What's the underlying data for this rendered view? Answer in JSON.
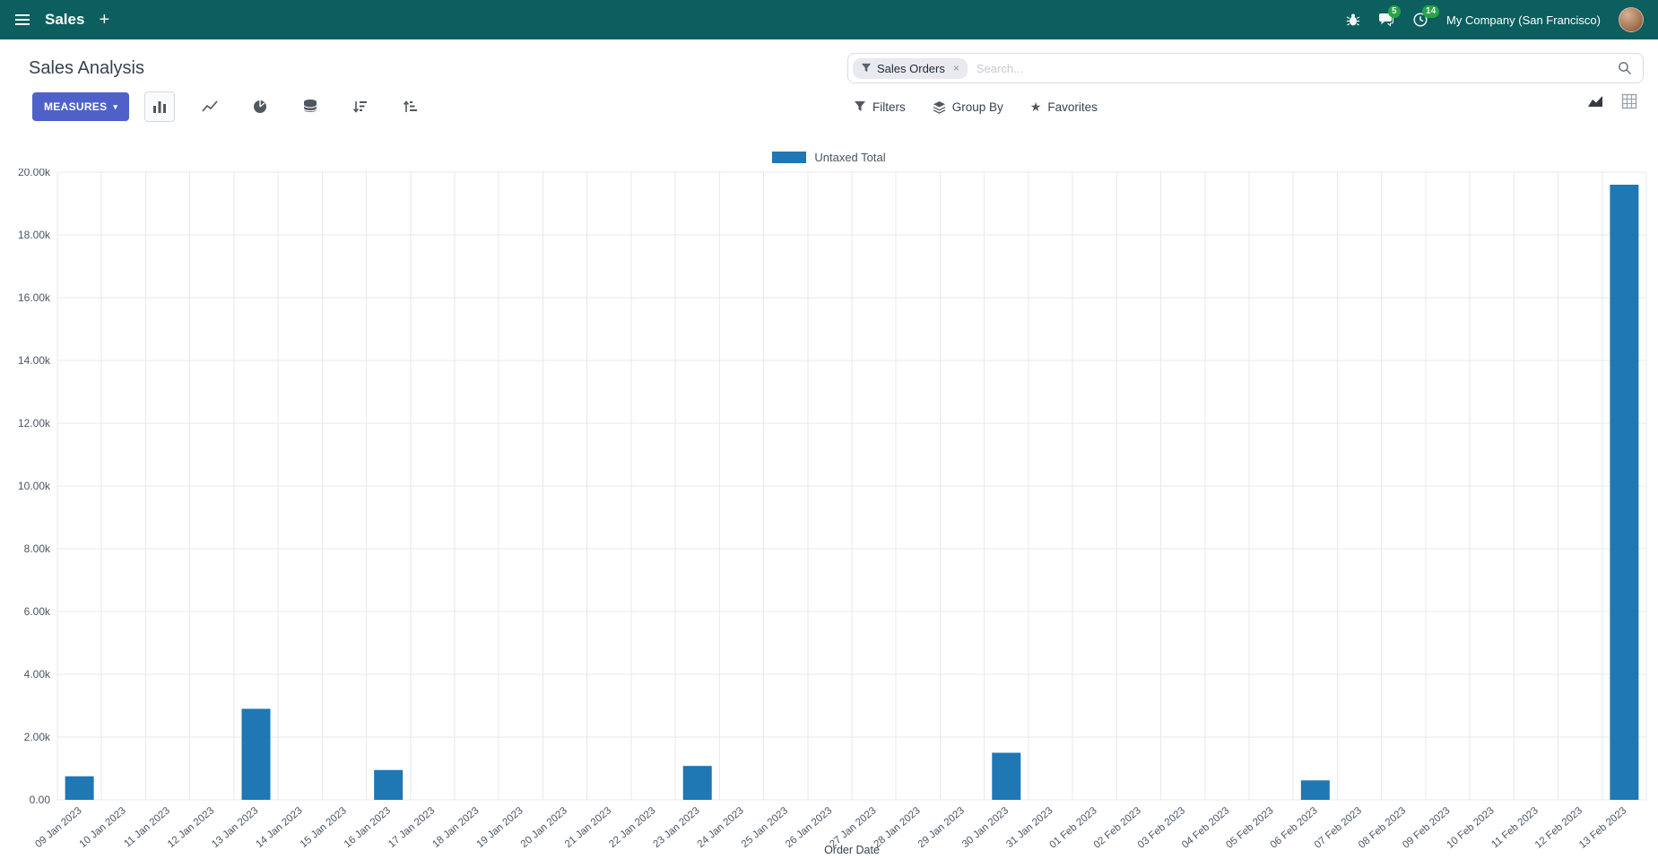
{
  "topbar": {
    "app_name": "Sales",
    "messages_count": "5",
    "activities_count": "14",
    "company": "My Company (San Francisco)"
  },
  "control_panel": {
    "breadcrumb": "Sales Analysis",
    "measures_label": "MEASURES",
    "search": {
      "facet": "Sales Orders",
      "placeholder": "Search..."
    },
    "filters_label": "Filters",
    "group_by_label": "Group By",
    "favorites_label": "Favorites"
  },
  "icons": {
    "plus": "+",
    "caret": "▾",
    "star": "★",
    "close": "×"
  },
  "colors": {
    "topbar_bg": "#0d5e5e",
    "primary": "#4f61c8",
    "badge_bg": "#28a745",
    "text_dark": "#374151",
    "icon": "#51575e",
    "border": "#d8dce1",
    "grid": "#e7e9eb"
  },
  "chart_data": {
    "type": "bar",
    "title": "",
    "legend": [
      "Untaxed Total"
    ],
    "series_color": "#1f77b4",
    "xlabel": "Order Date",
    "ylabel": "",
    "ylim": [
      0,
      20000
    ],
    "ytick_step": 2000,
    "ytick_labels": [
      "0.00",
      "2.00k",
      "4.00k",
      "6.00k",
      "8.00k",
      "10.00k",
      "12.00k",
      "14.00k",
      "16.00k",
      "18.00k",
      "20.00k"
    ],
    "grid": true,
    "legend_position": "top",
    "categories": [
      "09 Jan 2023",
      "10 Jan 2023",
      "11 Jan 2023",
      "12 Jan 2023",
      "13 Jan 2023",
      "14 Jan 2023",
      "15 Jan 2023",
      "16 Jan 2023",
      "17 Jan 2023",
      "18 Jan 2023",
      "19 Jan 2023",
      "20 Jan 2023",
      "21 Jan 2023",
      "22 Jan 2023",
      "23 Jan 2023",
      "24 Jan 2023",
      "25 Jan 2023",
      "26 Jan 2023",
      "27 Jan 2023",
      "28 Jan 2023",
      "29 Jan 2023",
      "30 Jan 2023",
      "31 Jan 2023",
      "01 Feb 2023",
      "02 Feb 2023",
      "03 Feb 2023",
      "04 Feb 2023",
      "05 Feb 2023",
      "06 Feb 2023",
      "07 Feb 2023",
      "08 Feb 2023",
      "09 Feb 2023",
      "10 Feb 2023",
      "11 Feb 2023",
      "12 Feb 2023",
      "13 Feb 2023"
    ],
    "values": [
      750,
      0,
      0,
      0,
      2900,
      0,
      0,
      950,
      0,
      0,
      0,
      0,
      0,
      0,
      1080,
      0,
      0,
      0,
      0,
      0,
      0,
      1500,
      0,
      0,
      0,
      0,
      0,
      0,
      620,
      0,
      0,
      0,
      0,
      0,
      0,
      19600
    ]
  }
}
